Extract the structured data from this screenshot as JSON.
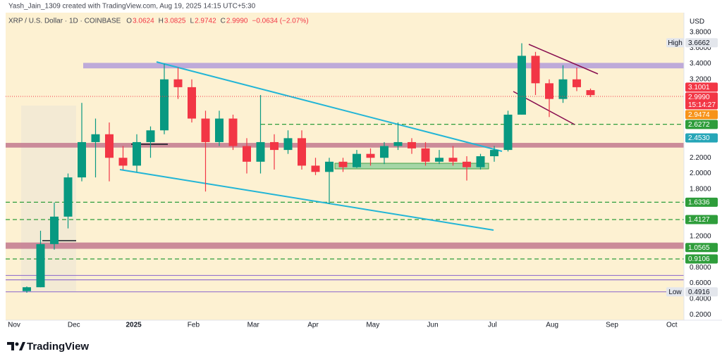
{
  "chart_data": {
    "type": "candlestick",
    "header": "Yash_Jain_1309 created with TradingView.com, Aug 19, 2025 14:15 UTC+5:30",
    "symbol": "XRP / U.S. Dollar · 1D · COINBASE",
    "ohlc": [
      {
        "key": "O",
        "value": "3.0624"
      },
      {
        "key": "H",
        "value": "3.0825"
      },
      {
        "key": "L",
        "value": "2.9742"
      },
      {
        "key": "C",
        "value": "2.9990"
      }
    ],
    "change": "−0.0634 (−2.07%)",
    "currency": "USD",
    "countdown": "15:14:27",
    "brand": "TradingView",
    "up_color": "#089981",
    "down_color": "#f23645",
    "ylim": [
      0.13,
      4.05
    ],
    "yticks": [
      {
        "value": 3.8,
        "label": "3.8000"
      },
      {
        "value": 3.6,
        "label": "3.6000"
      },
      {
        "value": 3.4,
        "label": "3.4000"
      },
      {
        "value": 3.2,
        "label": "3.2000"
      },
      {
        "value": 2.2,
        "label": "2.2000"
      },
      {
        "value": 2.0,
        "label": "2.0000"
      },
      {
        "value": 1.8,
        "label": "1.8000"
      },
      {
        "value": 1.2,
        "label": "1.2000"
      },
      {
        "value": 0.8,
        "label": "0.8000"
      },
      {
        "value": 0.6,
        "label": "0.6000"
      },
      {
        "value": 0.4,
        "label": "0.4000"
      },
      {
        "value": 0.2,
        "label": "0.2000"
      }
    ],
    "x_labels": [
      "Nov",
      "Dec",
      "2025",
      "Feb",
      "Mar",
      "Apr",
      "May",
      "Jun",
      "Jul",
      "Aug",
      "Sep",
      "Oct"
    ],
    "candles": {
      "open": [
        0.5,
        0.55,
        1.1,
        1.45,
        1.95,
        2.4,
        2.5,
        2.2,
        2.1,
        2.4,
        2.55,
        3.2,
        3.1,
        2.7,
        2.4,
        2.7,
        2.35,
        2.15,
        2.4,
        2.3,
        2.45,
        2.1,
        2.02,
        2.15,
        2.08,
        2.25,
        2.2,
        2.35,
        2.4,
        2.32,
        2.15,
        2.2,
        2.15,
        2.08,
        2.22,
        2.3,
        2.75,
        3.5,
        3.15,
        2.95,
        3.2,
        3.0624
      ],
      "high": [
        0.56,
        1.27,
        1.63,
        2.0,
        2.9,
        2.7,
        2.65,
        2.35,
        2.5,
        2.6,
        3.4,
        3.35,
        3.2,
        2.8,
        2.8,
        2.75,
        2.45,
        3.0,
        2.5,
        2.55,
        2.55,
        2.2,
        2.2,
        2.2,
        2.3,
        2.32,
        2.4,
        2.65,
        2.45,
        2.4,
        2.3,
        2.35,
        2.22,
        2.25,
        2.35,
        2.8,
        3.66,
        3.55,
        3.2,
        3.38,
        3.35,
        3.0825
      ],
      "low": [
        0.48,
        0.55,
        1.03,
        1.3,
        1.9,
        1.95,
        1.9,
        2.05,
        2.02,
        2.2,
        2.5,
        2.95,
        2.65,
        1.77,
        2.35,
        2.3,
        2.0,
        2.0,
        2.05,
        2.25,
        2.05,
        1.98,
        1.61,
        2.02,
        2.07,
        2.1,
        2.12,
        2.3,
        2.25,
        2.1,
        2.12,
        2.1,
        1.91,
        2.05,
        2.15,
        2.28,
        2.75,
        3.0,
        2.72,
        2.9,
        3.05,
        2.9742
      ],
      "close": [
        0.55,
        1.1,
        1.45,
        1.95,
        2.4,
        2.5,
        2.2,
        2.1,
        2.4,
        2.55,
        3.2,
        3.1,
        2.7,
        2.4,
        2.7,
        2.35,
        2.15,
        2.4,
        2.3,
        2.45,
        2.1,
        2.02,
        2.15,
        2.08,
        2.25,
        2.2,
        2.35,
        2.4,
        2.32,
        2.15,
        2.2,
        2.15,
        2.08,
        2.22,
        2.3,
        2.75,
        3.5,
        3.15,
        2.95,
        3.2,
        3.1,
        2.999
      ]
    },
    "zones": [
      {
        "range": [
          3.34,
          3.41
        ],
        "color": "#b39ddb"
      },
      {
        "range": [
          2.33,
          2.39
        ],
        "color": "#c2798f"
      },
      {
        "range": [
          1.04,
          1.12
        ],
        "color": "#c2798f"
      }
    ],
    "levels": [
      {
        "value": 2.6272,
        "color": "#2e9d3b",
        "dashed": true
      },
      {
        "value": 1.6336,
        "color": "#2e9d3b",
        "dashed": true
      },
      {
        "value": 1.4127,
        "color": "#2e9d3b",
        "dashed": true
      },
      {
        "value": 0.9106,
        "color": "#2e9d3b",
        "dashed": true
      },
      {
        "value": 0.7,
        "color": "#9575cd",
        "dashed": false
      },
      {
        "value": 0.645,
        "color": "#9575cd",
        "dashed": false
      },
      {
        "value": 0.4916,
        "color": "#9575cd",
        "dashed": false
      }
    ],
    "price_labels": [
      {
        "value": 3.6662,
        "tag": "High",
        "color": "#e3e6ec",
        "text_color": "#131722"
      },
      {
        "value": 3.1001,
        "color": "#f23645",
        "text_color": "#ffffff"
      },
      {
        "value": 2.999,
        "label": "2.9990",
        "color": "#f23645",
        "text_color": "#ffffff",
        "countdown": true
      },
      {
        "value": 2.9474,
        "color": "#f7931a",
        "text_color": "#ffffff"
      },
      {
        "value": 2.6272,
        "color": "#2e9d3b",
        "text_color": "#ffffff"
      },
      {
        "value": 2.453,
        "label": "2.4530",
        "color": "#26a6b8",
        "text_color": "#ffffff"
      },
      {
        "value": 1.6336,
        "color": "#2e9d3b",
        "text_color": "#ffffff"
      },
      {
        "value": 1.4127,
        "color": "#2e9d3b",
        "text_color": "#ffffff"
      },
      {
        "value": 1.0565,
        "color": "#2e9d3b",
        "text_color": "#ffffff"
      },
      {
        "value": 0.9106,
        "color": "#2e9d3b",
        "text_color": "#ffffff"
      },
      {
        "value": 0.4916,
        "tag": "Low",
        "color": "#e3e6ec",
        "text_color": "#131722"
      }
    ]
  }
}
